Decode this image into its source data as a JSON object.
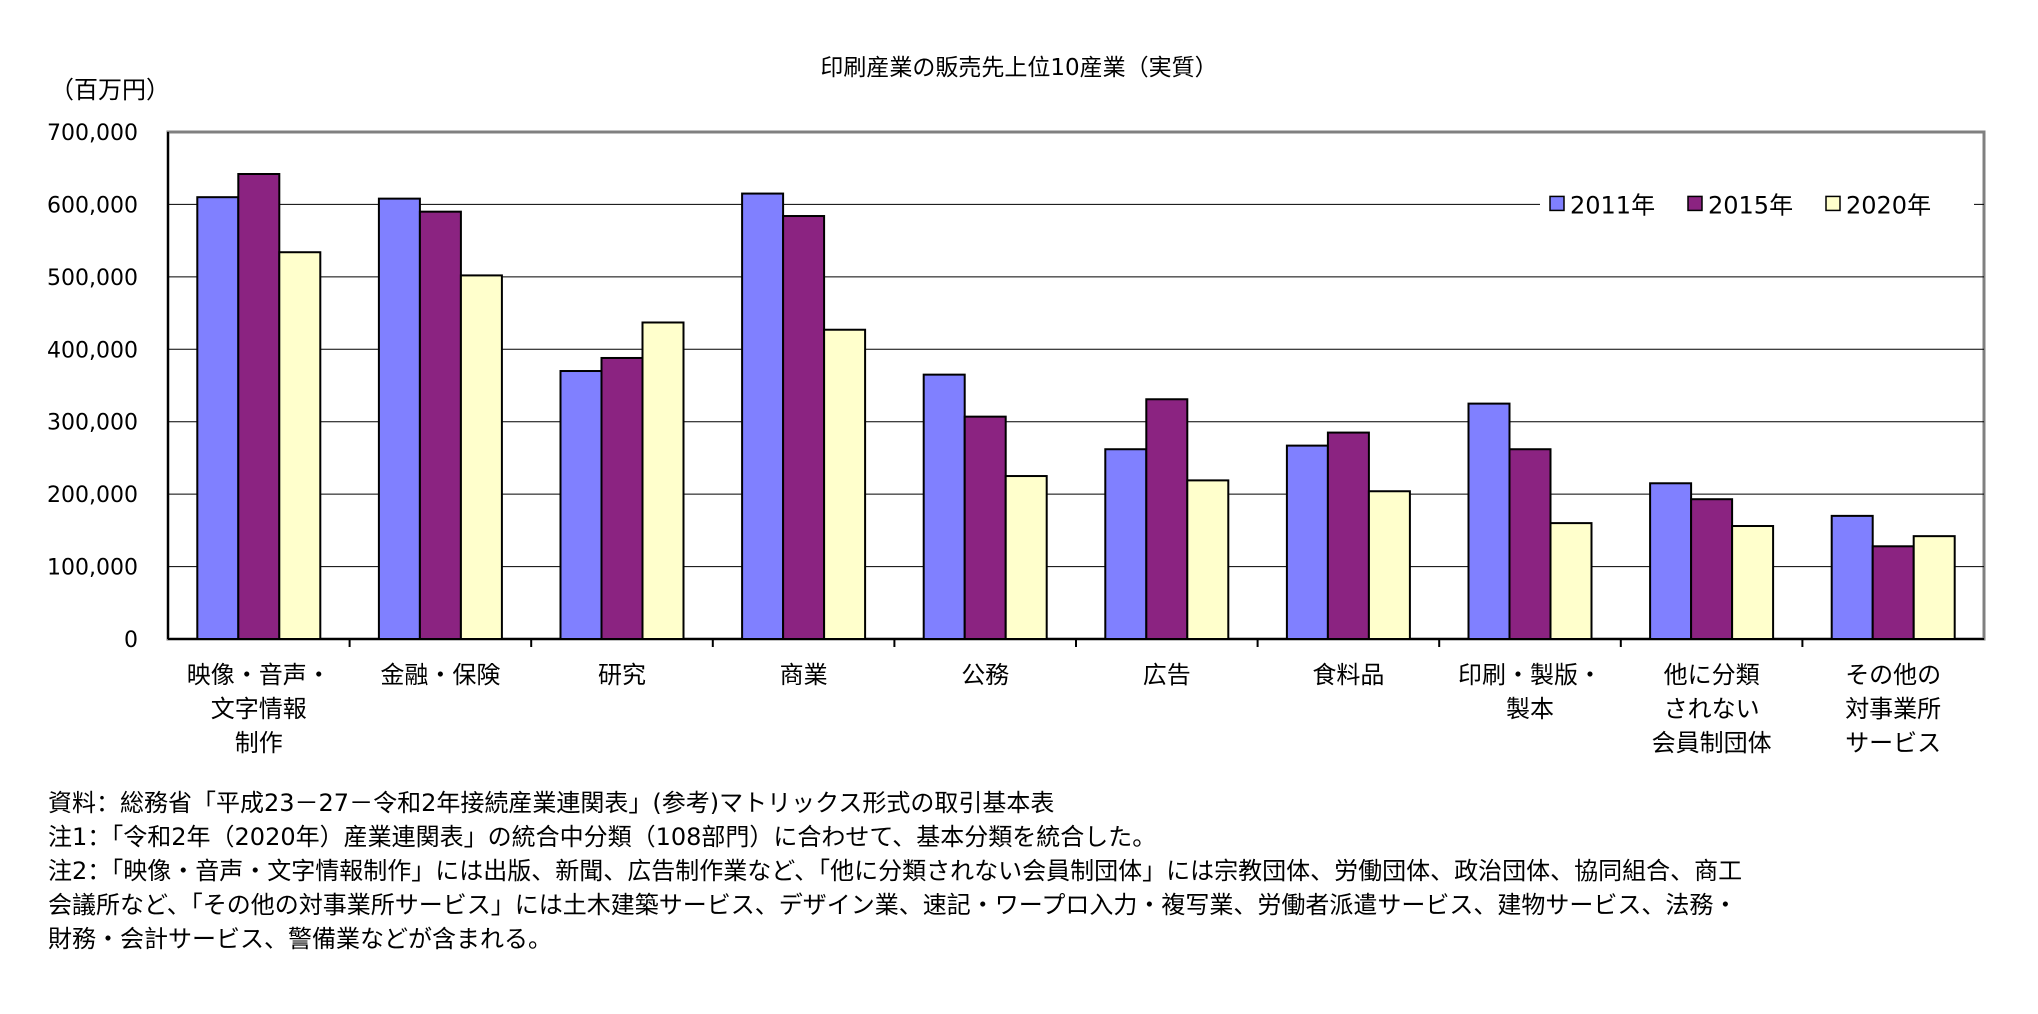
{
  "chart_data": {
    "type": "bar",
    "title": "印刷産業の販売先上位10産業（実質）",
    "ylabel": "（百万円）",
    "ylim": [
      0,
      700000
    ],
    "yticks": [
      "700,000",
      "600,000",
      "500,000",
      "400,000",
      "300,000",
      "200,000",
      "100,000",
      "0"
    ],
    "grid": true,
    "legend_position": "top-right",
    "categories": [
      [
        "映像・音声・",
        "文字情報",
        "制作"
      ],
      [
        "金融・保険"
      ],
      [
        "研究"
      ],
      [
        "商業"
      ],
      [
        "公務"
      ],
      [
        "広告"
      ],
      [
        "食料品"
      ],
      [
        "印刷・製版・",
        "製本"
      ],
      [
        "他に分類",
        "されない",
        "会員制団体"
      ],
      [
        "その他の",
        "対事業所",
        "サービス"
      ]
    ],
    "series": [
      {
        "name": "2011年",
        "color": "#8080FF",
        "values": [
          610000,
          608000,
          370000,
          615000,
          365000,
          262000,
          267000,
          325000,
          215000,
          170000
        ]
      },
      {
        "name": "2015年",
        "color": "#8B2381",
        "values": [
          642000,
          590000,
          388000,
          584000,
          307000,
          331000,
          285000,
          262000,
          193000,
          128000
        ]
      },
      {
        "name": "2020年",
        "color": "#FFFFCC",
        "values": [
          534000,
          502000,
          437000,
          427000,
          225000,
          219000,
          204000,
          160000,
          156000,
          142000
        ]
      }
    ]
  },
  "notes": [
    "資料：総務省「平成23－27－令和2年接続産業連関表」(参考)マトリックス形式の取引基本表",
    "注1：「令和2年（2020年）産業連関表」の統合中分類（108部門）に合わせて、基本分類を統合した。",
    "注2：「映像・音声・文字情報制作」には出版、新聞、広告制作業など、「他に分類されない会員制団体」には宗教団体、労働団体、政治団体、協同組合、商工",
    "会議所など、「その他の対事業所サービス」には土木建築サービス、デザイン業、速記・ワープロ入力・複写業、労働者派遣サービス、建物サービス、法務・",
    "財務・会計サービス、警備業などが含まれる。"
  ]
}
